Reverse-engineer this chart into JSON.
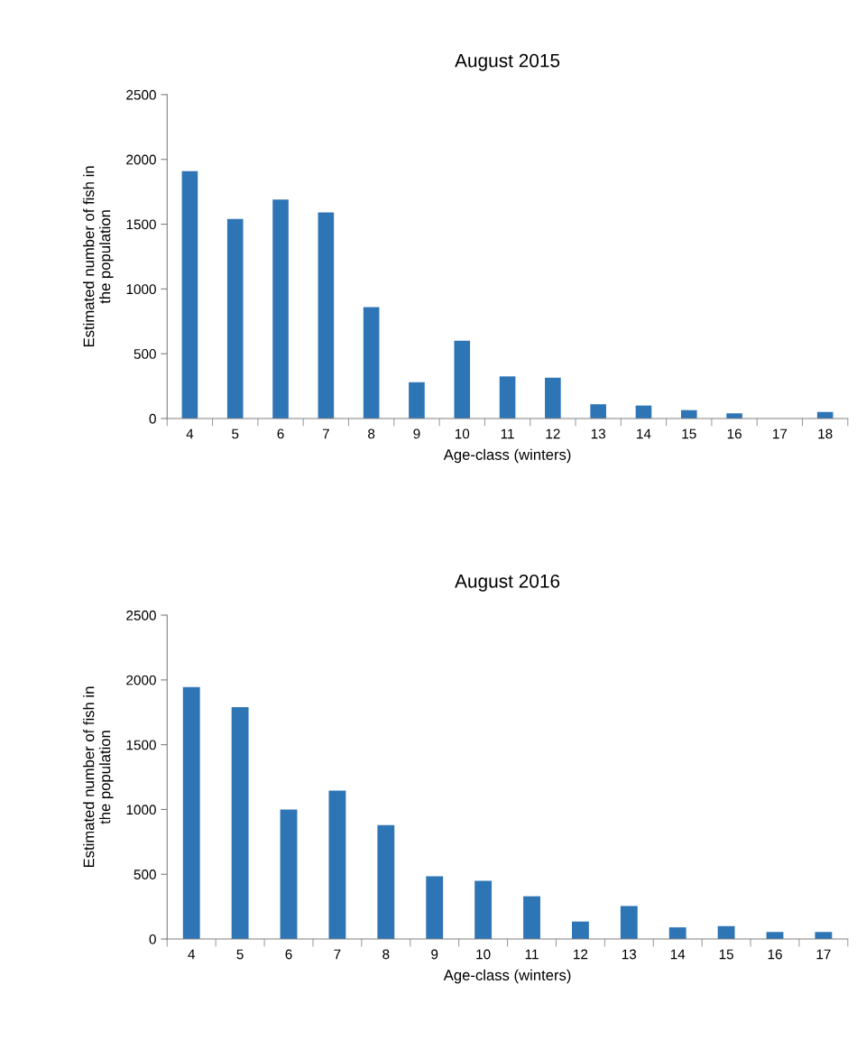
{
  "chart_data": [
    {
      "type": "bar",
      "title": "August 2015",
      "xlabel": "Age-class (winters)",
      "ylabel": "Estimated number of fish in the population",
      "categories": [
        "4",
        "5",
        "6",
        "7",
        "8",
        "9",
        "10",
        "11",
        "12",
        "13",
        "14",
        "15",
        "16",
        "17",
        "18"
      ],
      "series": [
        {
          "color": "#2e75b6",
          "values": [
            1910,
            1540,
            1690,
            1590,
            860,
            280,
            600,
            325,
            315,
            110,
            100,
            65,
            40,
            0,
            50
          ]
        }
      ],
      "ylim": [
        0,
        2500
      ],
      "yticks": [
        0,
        500,
        1000,
        1500,
        2000,
        2500
      ],
      "grid": false,
      "legend": false
    },
    {
      "type": "bar",
      "title": "August 2016",
      "xlabel": "Age-class (winters)",
      "ylabel": "Estimated number of fish in the population",
      "categories": [
        "4",
        "5",
        "6",
        "7",
        "8",
        "9",
        "10",
        "11",
        "12",
        "13",
        "14",
        "15",
        "16",
        "17"
      ],
      "series": [
        {
          "color": "#2e75b6",
          "values": [
            1945,
            1790,
            1000,
            1145,
            880,
            485,
            450,
            330,
            135,
            255,
            90,
            100,
            55,
            55
          ]
        }
      ],
      "ylim": [
        0,
        2500
      ],
      "yticks": [
        0,
        500,
        1000,
        1500,
        2000,
        2500
      ],
      "grid": false,
      "legend": false
    }
  ]
}
